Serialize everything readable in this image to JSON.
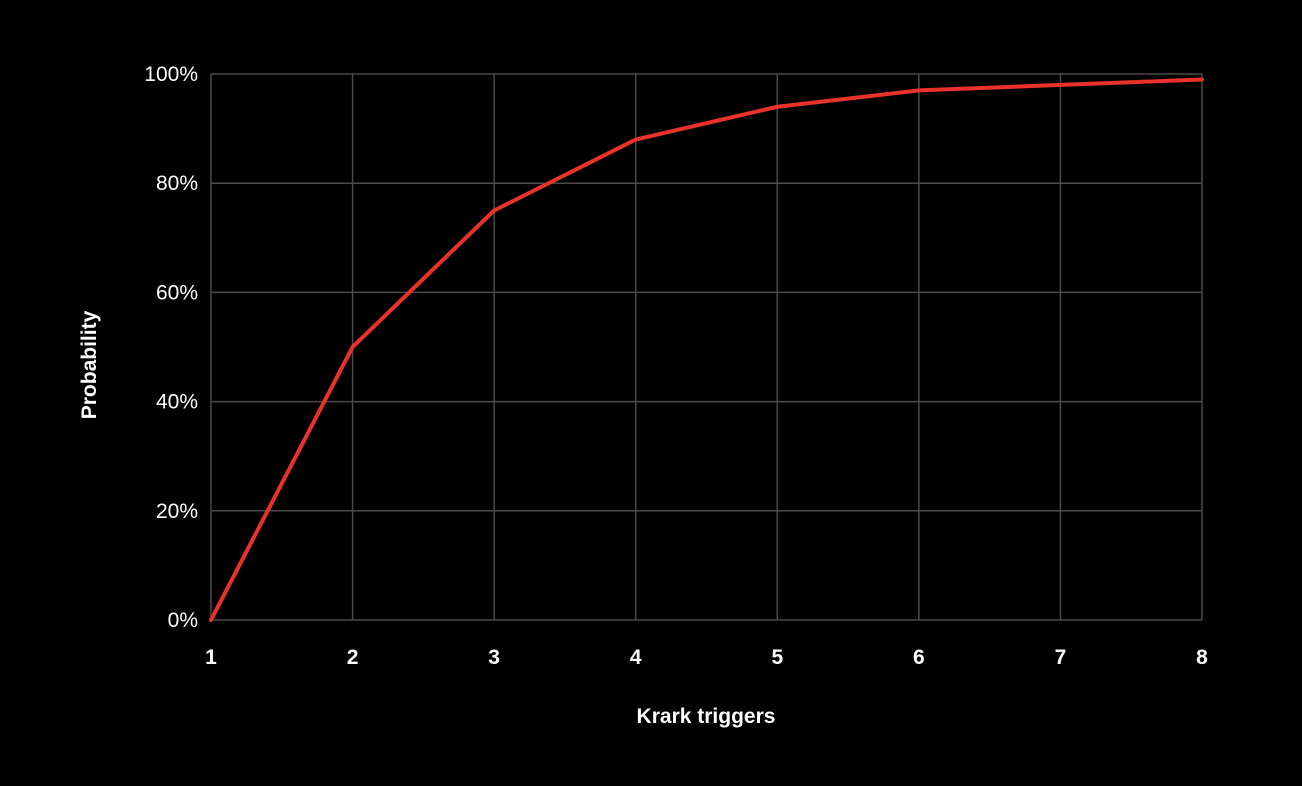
{
  "chart_data": {
    "type": "line",
    "title": "",
    "xlabel": "Krark triggers",
    "ylabel": "Probability",
    "x": [
      1,
      2,
      3,
      4,
      5,
      6,
      7,
      8
    ],
    "x_tick_labels": [
      "1",
      "2",
      "3",
      "4",
      "5",
      "6",
      "7",
      "8"
    ],
    "y_ticks": [
      0,
      20,
      40,
      60,
      80,
      100
    ],
    "y_tick_labels": [
      "0%",
      "20%",
      "40%",
      "60%",
      "80%",
      "100%"
    ],
    "ylim": [
      0,
      100
    ],
    "xlim": [
      1,
      8
    ],
    "grid": true,
    "legend": "none",
    "series": [
      {
        "color": "#e8322a",
        "values": [
          0,
          50,
          75,
          88,
          94,
          97,
          98,
          99
        ]
      }
    ],
    "colors": {
      "background": "#000000",
      "grid": "#4a4a4a",
      "text": "#ffffff",
      "line": "#e8322a"
    }
  }
}
